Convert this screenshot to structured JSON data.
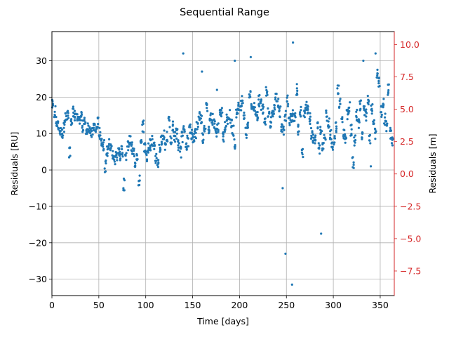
{
  "chart_data": {
    "type": "scatter",
    "title": "Sequential Range",
    "xlabel": "Time [days]",
    "ylabel": "Residuals [RU]",
    "y2label": "Residuals [m]",
    "xlim": [
      0,
      365
    ],
    "ylim": [
      -34.5,
      38
    ],
    "y2lim": [
      -9.4,
      11
    ],
    "xticks": [
      0,
      50,
      100,
      150,
      200,
      250,
      300,
      350
    ],
    "yticks": [
      -30,
      -20,
      -10,
      0,
      10,
      20,
      30
    ],
    "y2ticks": [
      -7.5,
      -5.0,
      -2.5,
      0.0,
      2.5,
      5.0,
      7.5,
      10.0
    ],
    "y2ticklabels": [
      "−7.5",
      "−5.0",
      "−2.5",
      "0.0",
      "2.5",
      "5.0",
      "7.5",
      "10.0"
    ],
    "yticklabels": [
      "−30",
      "−20",
      "−10",
      "0",
      "10",
      "20",
      "30"
    ],
    "grid": true,
    "point_color": "#1f77b4",
    "secondary_axis_color": "#d62728",
    "series": [
      {
        "x": [
          1,
          3,
          5,
          7,
          9,
          11,
          13,
          15,
          17,
          19,
          21,
          23,
          25,
          27,
          29,
          31,
          33,
          35,
          37,
          39,
          41,
          43,
          45,
          47,
          49,
          51,
          53,
          55,
          57,
          59,
          61,
          63,
          65,
          67,
          69,
          71,
          73,
          75,
          77,
          79,
          81,
          83,
          85,
          87,
          89,
          91,
          93,
          95,
          97,
          99,
          101,
          103,
          105,
          107,
          109,
          111,
          113,
          115,
          117,
          119,
          121,
          123,
          125,
          127,
          129,
          131,
          133,
          135,
          137,
          139,
          141,
          143,
          145,
          147,
          149,
          151,
          153,
          155,
          157,
          159,
          161,
          163,
          165,
          167,
          169,
          171,
          173,
          175,
          177,
          179,
          181,
          183,
          185,
          187,
          189,
          191,
          193,
          195,
          197,
          199,
          201,
          203,
          205,
          207,
          209,
          211,
          213,
          215,
          217,
          219,
          221,
          223,
          225,
          227,
          229,
          231,
          233,
          235,
          237,
          239,
          241,
          243,
          245,
          247,
          249,
          251,
          253,
          255,
          257,
          259,
          261,
          263,
          265,
          267,
          269,
          271,
          273,
          275,
          277,
          279,
          281,
          283,
          285,
          287,
          289,
          291,
          293,
          295,
          297,
          299,
          301,
          303,
          305,
          307,
          309,
          311,
          313,
          315,
          317,
          319,
          321,
          323,
          325,
          327,
          329,
          331,
          333,
          335,
          337,
          339,
          341,
          343,
          345,
          347,
          349,
          351,
          353,
          355,
          357,
          359,
          361,
          363
        ],
        "y": [
          18,
          16,
          13,
          12,
          11,
          10,
          12,
          14,
          15,
          5,
          14,
          16,
          15,
          14,
          13,
          15,
          12,
          13,
          11,
          12,
          11,
          10,
          12,
          11,
          13,
          10,
          8,
          7,
          1,
          5,
          7,
          6,
          4,
          3,
          4,
          5,
          4,
          5,
          -4,
          4,
          7,
          8,
          6,
          5,
          2,
          4,
          -3,
          7,
          12,
          6,
          4,
          6,
          7,
          8,
          6,
          3,
          2,
          6,
          8,
          10,
          7,
          9,
          13,
          8,
          12,
          9,
          10,
          7,
          5,
          9,
          12,
          6,
          8,
          11,
          10,
          9,
          10,
          12,
          15,
          14,
          9,
          12,
          17,
          11,
          15,
          14,
          13,
          10,
          12,
          15,
          16,
          9,
          12,
          14,
          15,
          13,
          11,
          7,
          16,
          17,
          18,
          19,
          15,
          10,
          12,
          21,
          18,
          17,
          16,
          15,
          19,
          18,
          17,
          14,
          22,
          16,
          13,
          15,
          17,
          20,
          18,
          16,
          12,
          11,
          15,
          19,
          13,
          14,
          15,
          14,
          22,
          11,
          16,
          5,
          15,
          18,
          17,
          14,
          10,
          9,
          8,
          12,
          6,
          11,
          7,
          9,
          15,
          13,
          10,
          7,
          8,
          12,
          22,
          18,
          14,
          10,
          9,
          15,
          17,
          11,
          2,
          8,
          15,
          13,
          18,
          9,
          16,
          15,
          19,
          8,
          17,
          13,
          10,
          26,
          24,
          16,
          18,
          14,
          12,
          22,
          10,
          8
        ],
        "outliers": {
          "x": [
            140,
            160,
            176,
            195,
            212,
            246,
            249,
            256,
            257,
            287,
            340,
            345,
            332
          ],
          "y": [
            32,
            27,
            22,
            30,
            31,
            -5,
            -23,
            -31.5,
            35,
            -17.5,
            1,
            32,
            30
          ]
        }
      }
    ]
  }
}
